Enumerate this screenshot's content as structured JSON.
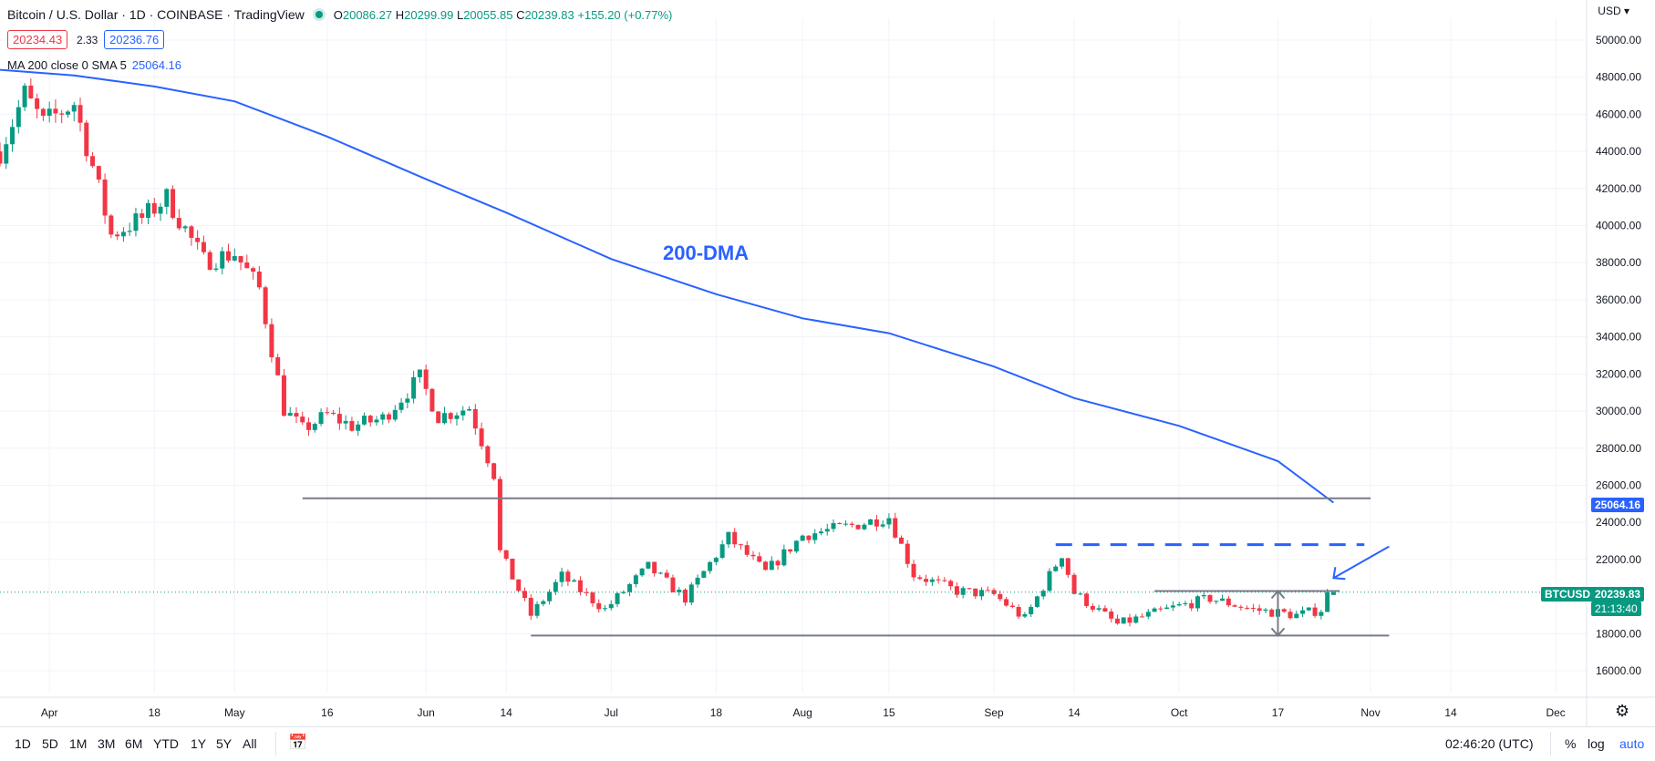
{
  "header": {
    "title": "Bitcoin / U.S. Dollar · 1D · COINBASE · TradingView",
    "ohlc": {
      "o_label": "O",
      "o": "20086.27",
      "h_label": "H",
      "h": "20299.99",
      "l_label": "L",
      "l": "20055.85",
      "c_label": "C",
      "c": "20239.83",
      "change": "+155.20 (+0.77%)"
    },
    "bid": "20234.43",
    "spread": "2.33",
    "ask": "20236.76",
    "ma_label": "MA 200 close 0 SMA 5",
    "ma_value": "25064.16"
  },
  "currency": "USD",
  "annotation": "200-DMA",
  "tags": {
    "ma_price": "25064.16",
    "symbol": "BTCUSD",
    "price": "20239.83",
    "countdown": "21:13:40"
  },
  "x_ticks": [
    "Apr",
    "18",
    "May",
    "16",
    "Jun",
    "14",
    "Jul",
    "18",
    "Aug",
    "15",
    "Sep",
    "14",
    "Oct",
    "17",
    "Nov",
    "14",
    "Dec"
  ],
  "y_ticks": [
    "50000.00",
    "48000.00",
    "46000.00",
    "44000.00",
    "42000.00",
    "40000.00",
    "38000.00",
    "36000.00",
    "34000.00",
    "32000.00",
    "30000.00",
    "28000.00",
    "26000.00",
    "24000.00",
    "22000.00",
    "18000.00",
    "16000.00"
  ],
  "bottom_bar": {
    "ranges": [
      "1D",
      "5D",
      "1M",
      "3M",
      "6M",
      "YTD",
      "1Y",
      "5Y",
      "All"
    ],
    "time": "02:46:20 (UTC)",
    "percent": "%",
    "log": "log",
    "auto": "auto"
  },
  "colors": {
    "up": "#089981",
    "down": "#f23645",
    "ma": "#2962ff",
    "level": "#787b86"
  },
  "chart_data": {
    "type": "candlestick",
    "title": "Bitcoin / U.S. Dollar · 1D · COINBASE",
    "x_range": [
      "2022-03-24",
      "2022-12-06"
    ],
    "y_range": [
      15000,
      51000
    ],
    "series": [
      {
        "name": "Close",
        "type": "line",
        "points": [
          [
            "2022-03-24",
            44000
          ],
          [
            "2022-03-28",
            47100
          ],
          [
            "2022-03-31",
            45500
          ],
          [
            "2022-04-05",
            46600
          ],
          [
            "2022-04-08",
            43200
          ],
          [
            "2022-04-11",
            39500
          ],
          [
            "2022-04-16",
            40400
          ],
          [
            "2022-04-20",
            41500
          ],
          [
            "2022-04-26",
            38100
          ],
          [
            "2022-05-01",
            38500
          ],
          [
            "2022-05-05",
            36600
          ],
          [
            "2022-05-09",
            30100
          ],
          [
            "2022-05-12",
            29000
          ],
          [
            "2022-05-16",
            29800
          ],
          [
            "2022-05-20",
            29200
          ],
          [
            "2022-05-25",
            29600
          ],
          [
            "2022-05-31",
            31800
          ],
          [
            "2022-06-03",
            29700
          ],
          [
            "2022-06-08",
            30200
          ],
          [
            "2022-06-12",
            26600
          ],
          [
            "2022-06-13",
            22400
          ],
          [
            "2022-06-18",
            19000
          ],
          [
            "2022-06-23",
            21100
          ],
          [
            "2022-06-30",
            19300
          ],
          [
            "2022-07-07",
            21600
          ],
          [
            "2022-07-13",
            19900
          ],
          [
            "2022-07-20",
            23200
          ],
          [
            "2022-07-26",
            21300
          ],
          [
            "2022-08-01",
            23300
          ],
          [
            "2022-08-10",
            23900
          ],
          [
            "2022-08-15",
            24300
          ],
          [
            "2022-08-19",
            21200
          ],
          [
            "2022-08-26",
            20300
          ],
          [
            "2022-09-01",
            20100
          ],
          [
            "2022-09-06",
            18800
          ],
          [
            "2022-09-12",
            22300
          ],
          [
            "2022-09-14",
            20200
          ],
          [
            "2022-09-21",
            18500
          ],
          [
            "2022-09-30",
            19400
          ],
          [
            "2022-10-06",
            19900
          ],
          [
            "2022-10-13",
            19300
          ],
          [
            "2022-10-20",
            19000
          ],
          [
            "2022-10-24",
            19300
          ],
          [
            "2022-10-25",
            20100
          ],
          [
            "2022-10-26",
            20240
          ]
        ]
      },
      {
        "name": "MA 200 close 0 SMA 5",
        "type": "line",
        "points": [
          [
            "2022-03-24",
            48400
          ],
          [
            "2022-04-05",
            48100
          ],
          [
            "2022-04-18",
            47500
          ],
          [
            "2022-05-01",
            46700
          ],
          [
            "2022-05-16",
            44800
          ],
          [
            "2022-06-01",
            42500
          ],
          [
            "2022-06-14",
            40700
          ],
          [
            "2022-07-01",
            38200
          ],
          [
            "2022-07-18",
            36300
          ],
          [
            "2022-08-01",
            35000
          ],
          [
            "2022-08-15",
            34200
          ],
          [
            "2022-09-01",
            32400
          ],
          [
            "2022-09-14",
            30700
          ],
          [
            "2022-10-01",
            29200
          ],
          [
            "2022-10-17",
            27300
          ],
          [
            "2022-10-26",
            25064
          ]
        ]
      }
    ],
    "levels": [
      {
        "name": "resistance",
        "y": 25300,
        "x_from": "2022-05-12",
        "x_to": "2022-11-01"
      },
      {
        "name": "support",
        "y": 17900,
        "x_from": "2022-06-18",
        "x_to": "2022-11-04"
      },
      {
        "name": "range-top",
        "y": 20300,
        "x_from": "2022-09-27",
        "x_to": "2022-10-27"
      },
      {
        "name": "breakout-target",
        "style": "dashed",
        "y": 22800,
        "x_from": "2022-09-11",
        "x_to": "2022-10-31"
      }
    ],
    "grid": true,
    "legend": "top-left"
  }
}
